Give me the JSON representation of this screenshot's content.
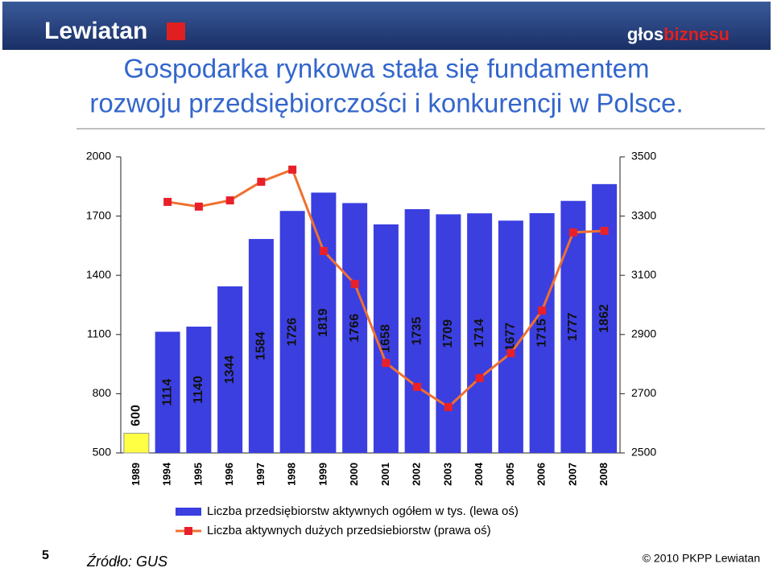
{
  "header": {
    "logo": "Lewiatan",
    "brand_left": "głos",
    "brand_right": "biznesu"
  },
  "title_lines": [
    "Gospodarka rynkowa stała się fundamentem",
    "rozwoju przedsiębiorczości i konkurencji w Polsce."
  ],
  "footer": {
    "page": "5",
    "source": "Źródło: GUS",
    "copyright": "© 2010 PKPP Lewiatan"
  },
  "chart_data": {
    "type": "bar",
    "categories": [
      "1989",
      "1994",
      "1995",
      "1996",
      "1997",
      "1998",
      "1999",
      "2000",
      "2001",
      "2002",
      "2003",
      "2004",
      "2005",
      "2006",
      "2007",
      "2008"
    ],
    "series": [
      {
        "name": "Liczba przedsiębiorstw aktywnych ogółem w tys. (lewa oś)",
        "type": "bar",
        "color": "#3b3fe0",
        "colors": [
          "#ffff44",
          "#3b3fe0",
          "#3b3fe0",
          "#3b3fe0",
          "#3b3fe0",
          "#3b3fe0",
          "#3b3fe0",
          "#3b3fe0",
          "#3b3fe0",
          "#3b3fe0",
          "#3b3fe0",
          "#3b3fe0",
          "#3b3fe0",
          "#3b3fe0",
          "#3b3fe0",
          "#3b3fe0"
        ],
        "values": [
          600,
          1114,
          1140,
          1344,
          1584,
          1726,
          1819,
          1766,
          1658,
          1735,
          1709,
          1714,
          1677,
          1715,
          1777,
          1862
        ]
      },
      {
        "name": "Liczba aktywnych dużych przedsiebiorstw (prawa oś)",
        "type": "line",
        "axis": "y2",
        "color": "#f07030",
        "marker_color": "#e8202a",
        "values": [
          null,
          3348,
          3332,
          3353,
          3416,
          3457,
          3182,
          3071,
          2804,
          2723,
          2655,
          2753,
          2837,
          2981,
          3245,
          3250
        ]
      }
    ],
    "ylim": [
      500,
      2000
    ],
    "yticks": [
      500,
      800,
      1100,
      1400,
      1700,
      2000
    ],
    "y2lim": [
      2500,
      3500
    ],
    "y2ticks": [
      2500,
      2700,
      2900,
      3100,
      3300,
      3500
    ],
    "grid": false
  }
}
